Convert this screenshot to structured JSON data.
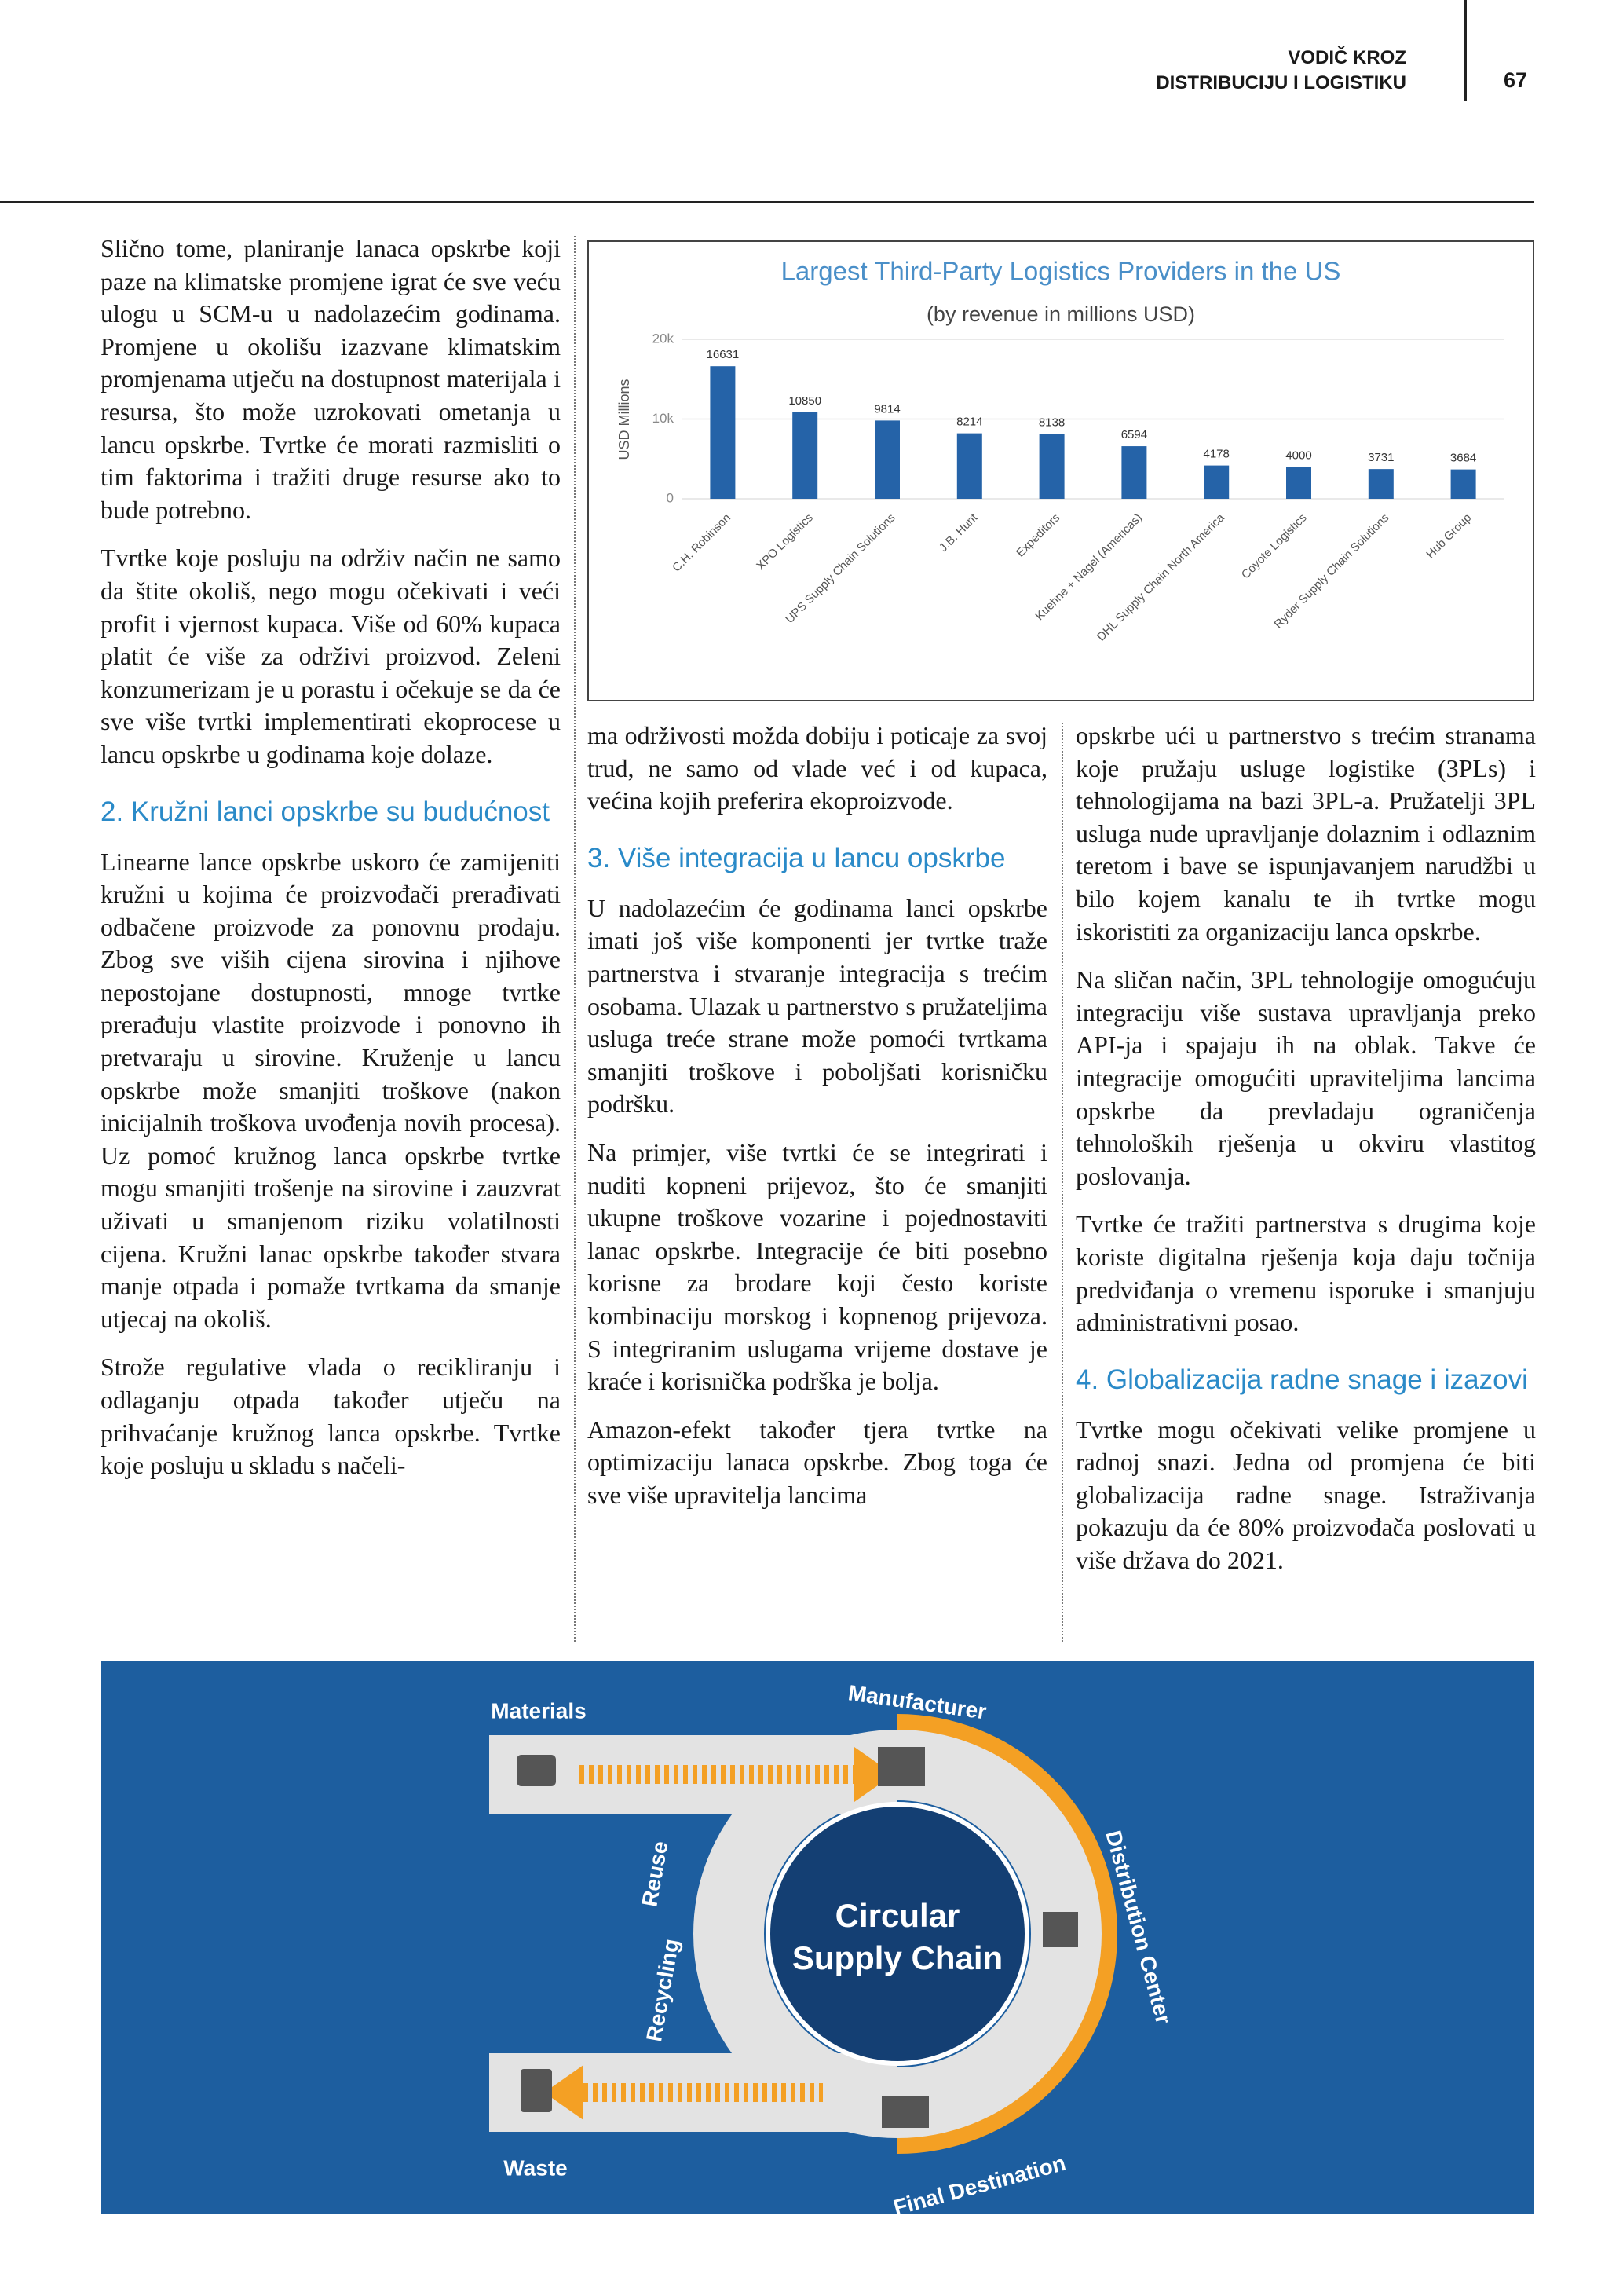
{
  "header": {
    "section": [
      "VODIČ KROZ",
      "DISTRIBUCIJU I LOGISTIKU"
    ],
    "page_number": "67"
  },
  "columns": [
    {
      "blocks": [
        {
          "paragraph": "Slično tome, planiranje lanaca opskrbe koji paze na klimatske promjene igrat će sve veću ulogu u SCM-u u nadolazećim godinama. Promjene u okolišu izazvane klimatskim promjenama utječu na dostupnost materijala i resursa, što može uzrokovati ometanja u lancu opskrbe. Tvrtke će morati razmisliti o tim faktorima i tražiti druge resurse ako to bude potrebno."
        },
        {
          "paragraph": "Tvrtke koje posluju na održiv način ne samo da štite okoliš, nego mogu očekivati i veći profit i vjernost kupaca. Više od 60% kupaca platit će više za održivi proizvod. Zeleni konzumerizam je u porastu i očekuje se da će sve više tvrtki implementirati ekoprocese u lancu opskrbe u godinama koje dolaze."
        },
        {
          "heading": "2. Kružni lanci opskrbe su budućnost"
        },
        {
          "paragraph": "Linearne lance opskrbe uskoro će zamijeniti kružni u kojima će proizvođači prerađivati odbačene proizvode za ponovnu prodaju. Zbog sve viših cijena sirovina i njihove nepostojane dostupnosti, mnoge tvrtke prerađuju vlastite proizvode i ponovno ih pretvaraju u sirovine. Kruženje u lancu opskrbe može smanjiti troškove (nakon inicijalnih troškova uvođenja novih procesa). Uz pomoć kružnog lanca opskrbe tvrtke mogu smanjiti trošenje na sirovine i zauzvrat uživati u smanjenom riziku volatilnosti cijena. Kružni lanac opskrbe također stvara manje otpada i pomaže tvrtkama da smanje utjecaj na okoliš."
        },
        {
          "paragraph": "Strože regulative vlada o recikliranju i odlaganju otpada također utječu na prihvaćanje kružnog lanca opskrbe. Tvrtke koje posluju u skladu s načeli-"
        }
      ]
    },
    {
      "blocks": [
        {
          "paragraph": "ma održivosti možda dobiju i poticaje za svoj trud, ne samo od vlade već i od kupaca, većina kojih preferira ekoproizvode."
        },
        {
          "heading": "3. Više integracija u lancu opskrbe"
        },
        {
          "paragraph": "U nadolazećim će godinama lanci opskrbe imati još više komponenti jer tvrtke traže partnerstva i stvaranje integracija s trećim osobama. Ulazak u partnerstvo s pružateljima usluga treće strane može pomoći tvrtkama smanjiti troškove i poboljšati korisničku podršku."
        },
        {
          "paragraph": "Na primjer, više tvrtki će se integrirati i nuditi kopneni prijevoz, što će smanjiti ukupne troškove vozarine i pojednostaviti lanac opskrbe. Integracije će biti posebno korisne za brodare koji često koriste kombinaciju morskog i kopnenog prijevoza. S integriranim uslugama vrijeme dostave je kraće i korisnička podrška je bolja."
        },
        {
          "paragraph": "Amazon-efekt također tjera tvrtke na optimizaciju lanaca opskrbe. Zbog toga će sve više upravitelja lancima"
        }
      ]
    },
    {
      "blocks": [
        {
          "paragraph": "opskrbe ući u partnerstvo s trećim stranama koje pružaju usluge logistike (3PLs) i tehnologijama na bazi 3PL-a. Pružatelji 3PL usluga nude upravljanje dolaznim i odlaznim teretom i bave se ispunjavanjem narudžbi u bilo kojem kanalu te ih tvrtke mogu iskoristiti za organizaciju lanca opskrbe."
        },
        {
          "paragraph": "Na sličan način, 3PL tehnologije omogućuju integraciju više sustava upravljanja preko API-ja i spajaju ih na oblak. Takve će integracije omogućiti upraviteljima lancima opskrbe da prevladaju ograničenja tehnoloških rješenja u okviru vlastitog poslovanja."
        },
        {
          "paragraph": "Tvrtke će tražiti partnerstva s drugima koje koriste digitalna rješenja koja daju točnija predviđanja o vremenu isporuke i smanjuju administrativni posao."
        },
        {
          "heading": "4. Globalizacija radne snage i izazovi"
        },
        {
          "paragraph": "Tvrtke mogu očekivati velike promjene u radnoj snazi. Jedna od promjena će biti globalizacija radne snage. Istraživanja pokazuju da će 80% proizvođača poslovati u više država do 2021."
        }
      ]
    }
  ],
  "chart_data": {
    "type": "bar",
    "title": "Largest Third-Party Logistics Providers in the US",
    "subtitle": "(by revenue in millions USD)",
    "y_label": "USD Millions",
    "categories": [
      "C.H. Robinson",
      "XPO Logistics",
      "UPS Supply Chain Solutions",
      "J.B. Hunt",
      "Expeditors",
      "Kuehne + Nagel (Americas)",
      "DHL Supply Chain North America",
      "Coyote Logistics",
      "Ryder Supply Chain Solutions",
      "Hub Group"
    ],
    "values": [
      16631,
      10850,
      9814,
      8214,
      8138,
      6594,
      4178,
      4000,
      3731,
      3684
    ],
    "color": "#2563a8",
    "ylim": [
      0,
      20000
    ],
    "yticks": [
      0,
      {
        "value": 10000,
        "label": "10k"
      },
      {
        "value": 20000,
        "label": "20k"
      }
    ],
    "grid": true
  },
  "diagram": {
    "title": [
      "Circular",
      "Supply Chain"
    ],
    "labels": {
      "materials": "Materials",
      "manufacturer": "Manufacturer",
      "distribution": "Distribution Center",
      "destination": "Final Destination",
      "waste": "Waste",
      "recycling": "Recycling",
      "reuse": "Reuse"
    }
  }
}
